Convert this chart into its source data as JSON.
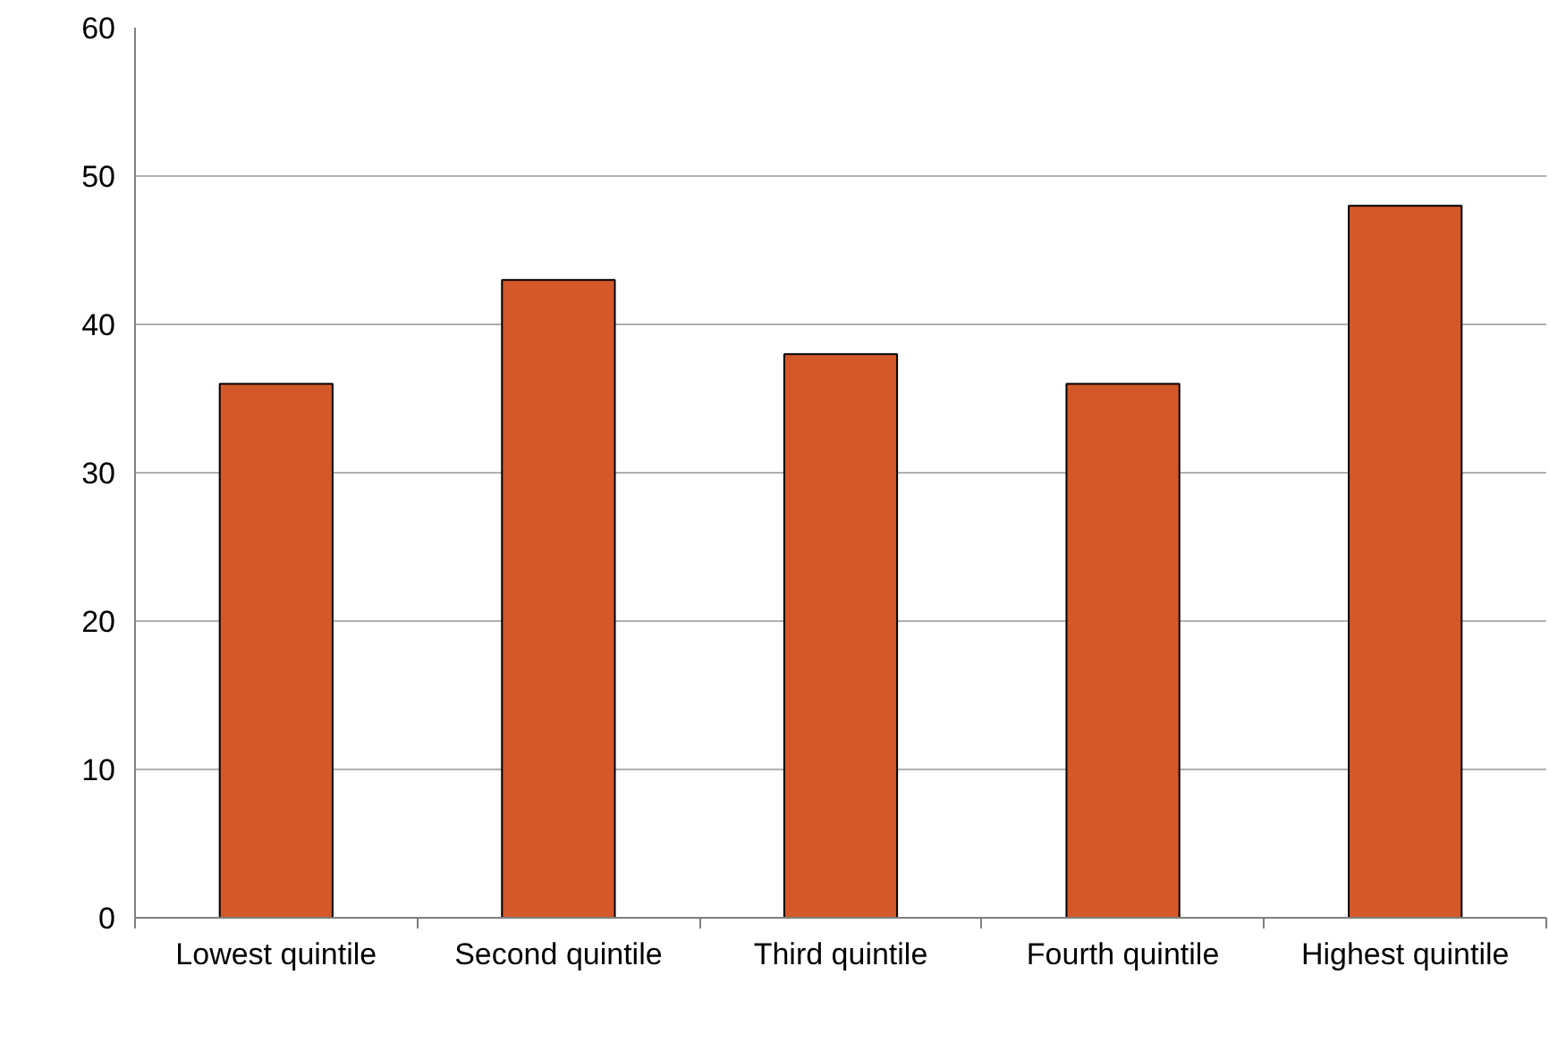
{
  "chart_data": {
    "type": "bar",
    "categories": [
      "Lowest quintile",
      "Second quintile",
      "Third quintile",
      "Fourth quintile",
      "Highest quintile"
    ],
    "values": [
      36,
      43,
      38,
      36,
      48
    ],
    "color": "#d4582a",
    "ylim": [
      0,
      60
    ],
    "yticks": [
      0,
      10,
      20,
      30,
      40,
      50,
      60
    ],
    "grid": "y"
  }
}
